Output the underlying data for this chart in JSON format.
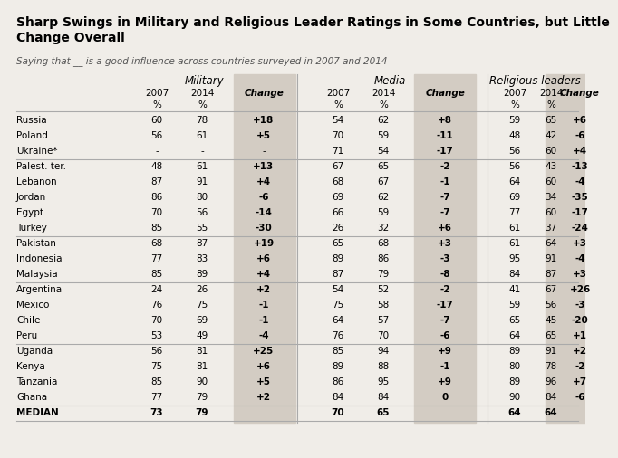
{
  "title": "Sharp Swings in Military and Religious Leader Ratings in Some Countries, but Little\nChange Overall",
  "subtitle": "Saying that __ is a good influence across countries surveyed in 2007 and 2014",
  "col_headers": [
    "Military",
    "Media",
    "Religious leaders"
  ],
  "countries": [
    "Russia",
    "Poland",
    "Ukraine*",
    "Palest. ter.",
    "Lebanon",
    "Jordan",
    "Egypt",
    "Turkey",
    "Pakistan",
    "Indonesia",
    "Malaysia",
    "Argentina",
    "Mexico",
    "Chile",
    "Peru",
    "Uganda",
    "Kenya",
    "Tanzania",
    "Ghana",
    "MEDIAN"
  ],
  "military": [
    [
      "60",
      "78",
      "+18"
    ],
    [
      "56",
      "61",
      "+5"
    ],
    [
      "-",
      "-",
      "-"
    ],
    [
      "48",
      "61",
      "+13"
    ],
    [
      "87",
      "91",
      "+4"
    ],
    [
      "86",
      "80",
      "-6"
    ],
    [
      "70",
      "56",
      "-14"
    ],
    [
      "85",
      "55",
      "-30"
    ],
    [
      "68",
      "87",
      "+19"
    ],
    [
      "77",
      "83",
      "+6"
    ],
    [
      "85",
      "89",
      "+4"
    ],
    [
      "24",
      "26",
      "+2"
    ],
    [
      "76",
      "75",
      "-1"
    ],
    [
      "70",
      "69",
      "-1"
    ],
    [
      "53",
      "49",
      "-4"
    ],
    [
      "56",
      "81",
      "+25"
    ],
    [
      "75",
      "81",
      "+6"
    ],
    [
      "85",
      "90",
      "+5"
    ],
    [
      "77",
      "79",
      "+2"
    ],
    [
      "73",
      "79",
      ""
    ]
  ],
  "media": [
    [
      "54",
      "62",
      "+8"
    ],
    [
      "70",
      "59",
      "-11"
    ],
    [
      "71",
      "54",
      "-17"
    ],
    [
      "67",
      "65",
      "-2"
    ],
    [
      "68",
      "67",
      "-1"
    ],
    [
      "69",
      "62",
      "-7"
    ],
    [
      "66",
      "59",
      "-7"
    ],
    [
      "26",
      "32",
      "+6"
    ],
    [
      "65",
      "68",
      "+3"
    ],
    [
      "89",
      "86",
      "-3"
    ],
    [
      "87",
      "79",
      "-8"
    ],
    [
      "54",
      "52",
      "-2"
    ],
    [
      "75",
      "58",
      "-17"
    ],
    [
      "64",
      "57",
      "-7"
    ],
    [
      "76",
      "70",
      "-6"
    ],
    [
      "85",
      "94",
      "+9"
    ],
    [
      "89",
      "88",
      "-1"
    ],
    [
      "86",
      "95",
      "+9"
    ],
    [
      "84",
      "84",
      "0"
    ],
    [
      "70",
      "65",
      ""
    ]
  ],
  "religious": [
    [
      "59",
      "65",
      "+6"
    ],
    [
      "48",
      "42",
      "-6"
    ],
    [
      "56",
      "60",
      "+4"
    ],
    [
      "56",
      "43",
      "-13"
    ],
    [
      "64",
      "60",
      "-4"
    ],
    [
      "69",
      "34",
      "-35"
    ],
    [
      "77",
      "60",
      "-17"
    ],
    [
      "61",
      "37",
      "-24"
    ],
    [
      "61",
      "64",
      "+3"
    ],
    [
      "95",
      "91",
      "-4"
    ],
    [
      "84",
      "87",
      "+3"
    ],
    [
      "41",
      "67",
      "+26"
    ],
    [
      "59",
      "56",
      "-3"
    ],
    [
      "65",
      "45",
      "-20"
    ],
    [
      "64",
      "65",
      "+1"
    ],
    [
      "89",
      "91",
      "+2"
    ],
    [
      "80",
      "78",
      "-2"
    ],
    [
      "89",
      "96",
      "+7"
    ],
    [
      "90",
      "84",
      "-6"
    ],
    [
      "64",
      "64",
      ""
    ]
  ],
  "group_separators": [
    2,
    7,
    10,
    14,
    18
  ],
  "background_color": "#f0ede8",
  "change_col_bg": "#d3ccc3",
  "text_color": "#000000",
  "separator_color": "#aaaaaa",
  "title_fontsize": 10,
  "subtitle_fontsize": 7.5,
  "header_fontsize": 8.5,
  "data_fontsize": 7.5
}
